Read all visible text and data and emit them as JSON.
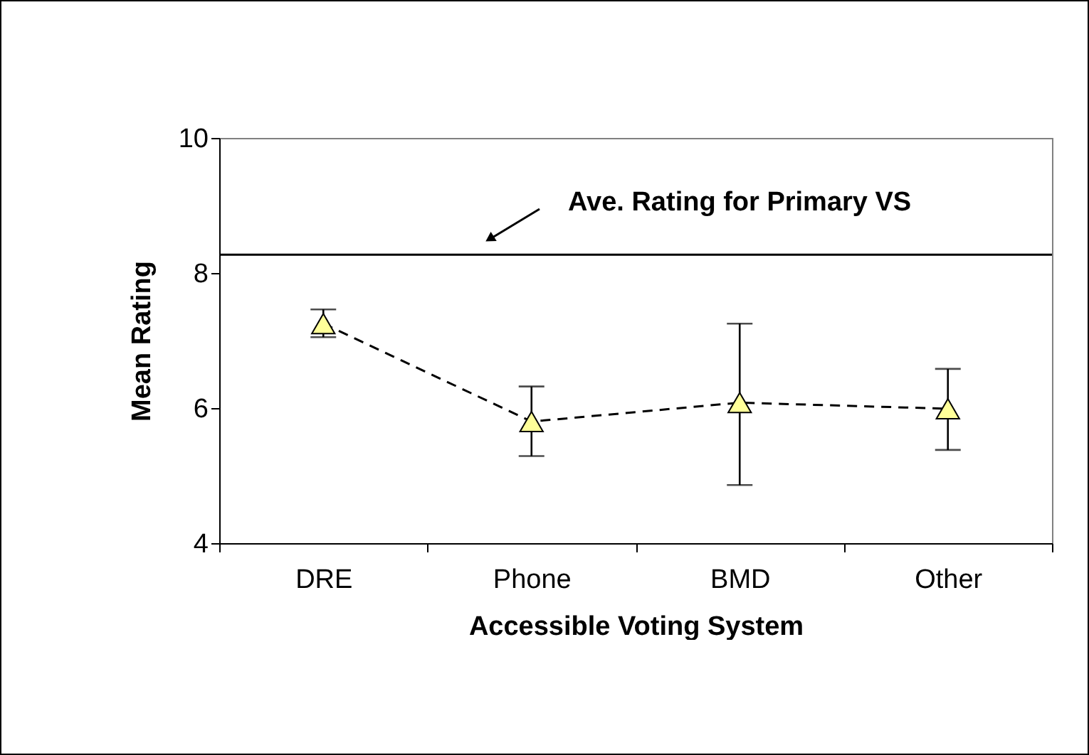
{
  "chart_data": {
    "type": "line",
    "xlabel": "Accessible Voting System",
    "ylabel": "Mean Rating",
    "categories": [
      "DRE",
      "Phone",
      "BMD",
      "Other"
    ],
    "series": [
      {
        "color": "#ffff99",
        "values": [
          7.25,
          5.8,
          6.08,
          5.99
        ],
        "errors": [
          [
            7.05,
            7.46
          ],
          [
            5.29,
            6.32
          ],
          [
            4.86,
            7.25
          ],
          [
            5.38,
            6.58
          ]
        ]
      }
    ],
    "ylim": [
      4,
      10
    ],
    "yticks": [
      4,
      6,
      8,
      10
    ],
    "grid": false,
    "marker": "triangle",
    "line_style": "dashed",
    "ref_lines": [
      {
        "axis": "y",
        "value": 8.27,
        "label": "Ave. Rating for Primary VS",
        "color": "#000000"
      }
    ]
  }
}
